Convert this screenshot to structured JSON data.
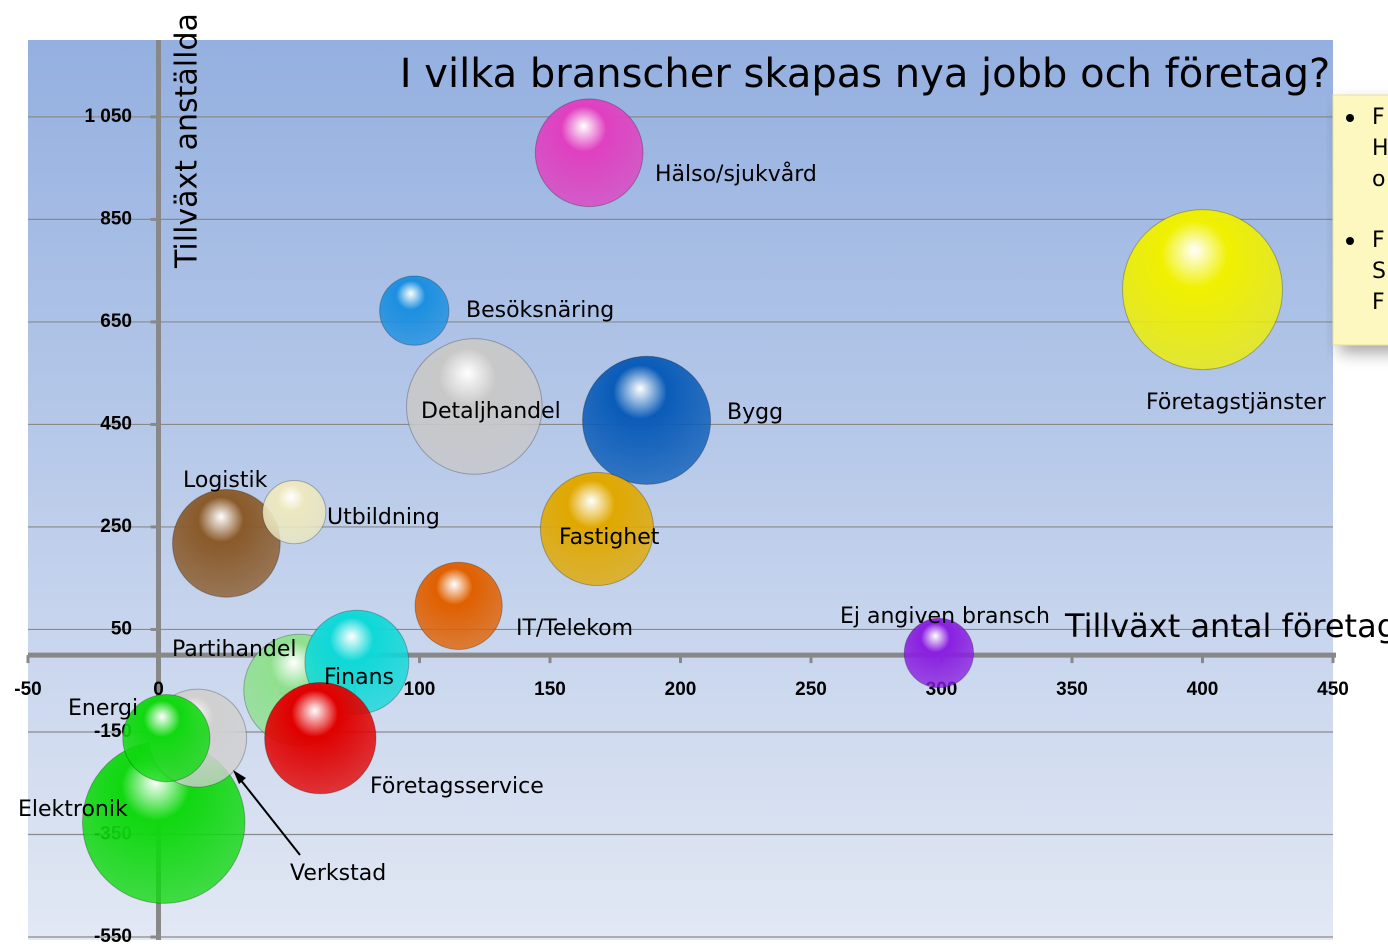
{
  "chart_data": {
    "type": "bubble",
    "title": "I vilka branscher skapas nya jobb och företag?",
    "x_label": "Tillväxt antal företag",
    "y_label": "Tillväxt anställda",
    "xlim": [
      -50,
      450
    ],
    "xticks": [
      -50,
      0,
      50,
      100,
      150,
      200,
      250,
      300,
      350,
      400,
      450
    ],
    "ylim": [
      -550,
      1200
    ],
    "yticks": [
      -550,
      -350,
      -150,
      50,
      250,
      450,
      650,
      850,
      {
        "value": 1050,
        "label": "1 050"
      }
    ],
    "grid": true,
    "series": [
      {
        "name": "Hälso/sjukvård",
        "color": "#e040c0",
        "x": [
          165
        ],
        "values": [
          980
        ],
        "sizes": [
          29
        ]
      },
      {
        "name": "Företagstjänster",
        "color": "#f0f000",
        "x": [
          400
        ],
        "values": [
          713
        ],
        "sizes": [
          64
        ]
      },
      {
        "name": "Besöksnäring",
        "color": "#1c8fe0",
        "x": [
          98
        ],
        "values": [
          672
        ],
        "sizes": [
          12
        ]
      },
      {
        "name": "Detaljhandel",
        "color": "#c8c8c8",
        "x": [
          121
        ],
        "values": [
          485
        ],
        "sizes": [
          46
        ]
      },
      {
        "name": "Bygg",
        "color": "#0a5cb8",
        "x": [
          187
        ],
        "values": [
          458
        ],
        "sizes": [
          41
        ]
      },
      {
        "name": "Fastighet",
        "color": "#e0a800",
        "x": [
          168
        ],
        "values": [
          246
        ],
        "sizes": [
          32
        ]
      },
      {
        "name": "Logistik",
        "color": "#8a5a2a",
        "x": [
          26
        ],
        "values": [
          218
        ],
        "sizes": [
          29
        ]
      },
      {
        "name": "Utbildning",
        "color": "#ece8c0",
        "x": [
          52
        ],
        "values": [
          279
        ],
        "sizes": [
          10
        ]
      },
      {
        "name": "IT/Telekom",
        "color": "#e06000",
        "x": [
          115
        ],
        "values": [
          96
        ],
        "sizes": [
          19
        ]
      },
      {
        "name": "Ej angiven bransch",
        "color": "#8a20e0",
        "x": [
          299
        ],
        "values": [
          4
        ],
        "sizes": [
          12
        ]
      },
      {
        "name": "Partihandel",
        "color": "#90e090",
        "x": [
          54
        ],
        "values": [
          -68
        ],
        "sizes": [
          31
        ]
      },
      {
        "name": "Finans",
        "color": "#10d8d8",
        "x": [
          76
        ],
        "values": [
          -14
        ],
        "sizes": [
          27
        ]
      },
      {
        "name": "Företagsservice",
        "color": "#e00000",
        "x": [
          62
        ],
        "values": [
          -162
        ],
        "sizes": [
          31
        ]
      },
      {
        "name": "Elektronik",
        "color": "#10d810",
        "x": [
          2
        ],
        "values": [
          -326
        ],
        "sizes": [
          66
        ]
      },
      {
        "name": "Verkstad",
        "color": "#d0d0d0",
        "x": [
          15
        ],
        "values": [
          -162
        ],
        "sizes": [
          24
        ]
      },
      {
        "name": "Energi",
        "color": "#10d810",
        "x": [
          3
        ],
        "values": [
          -162
        ],
        "sizes": [
          19
        ]
      }
    ]
  },
  "note": {
    "lines": [
      "F",
      "H",
      "o",
      "F",
      "S",
      "F"
    ]
  }
}
